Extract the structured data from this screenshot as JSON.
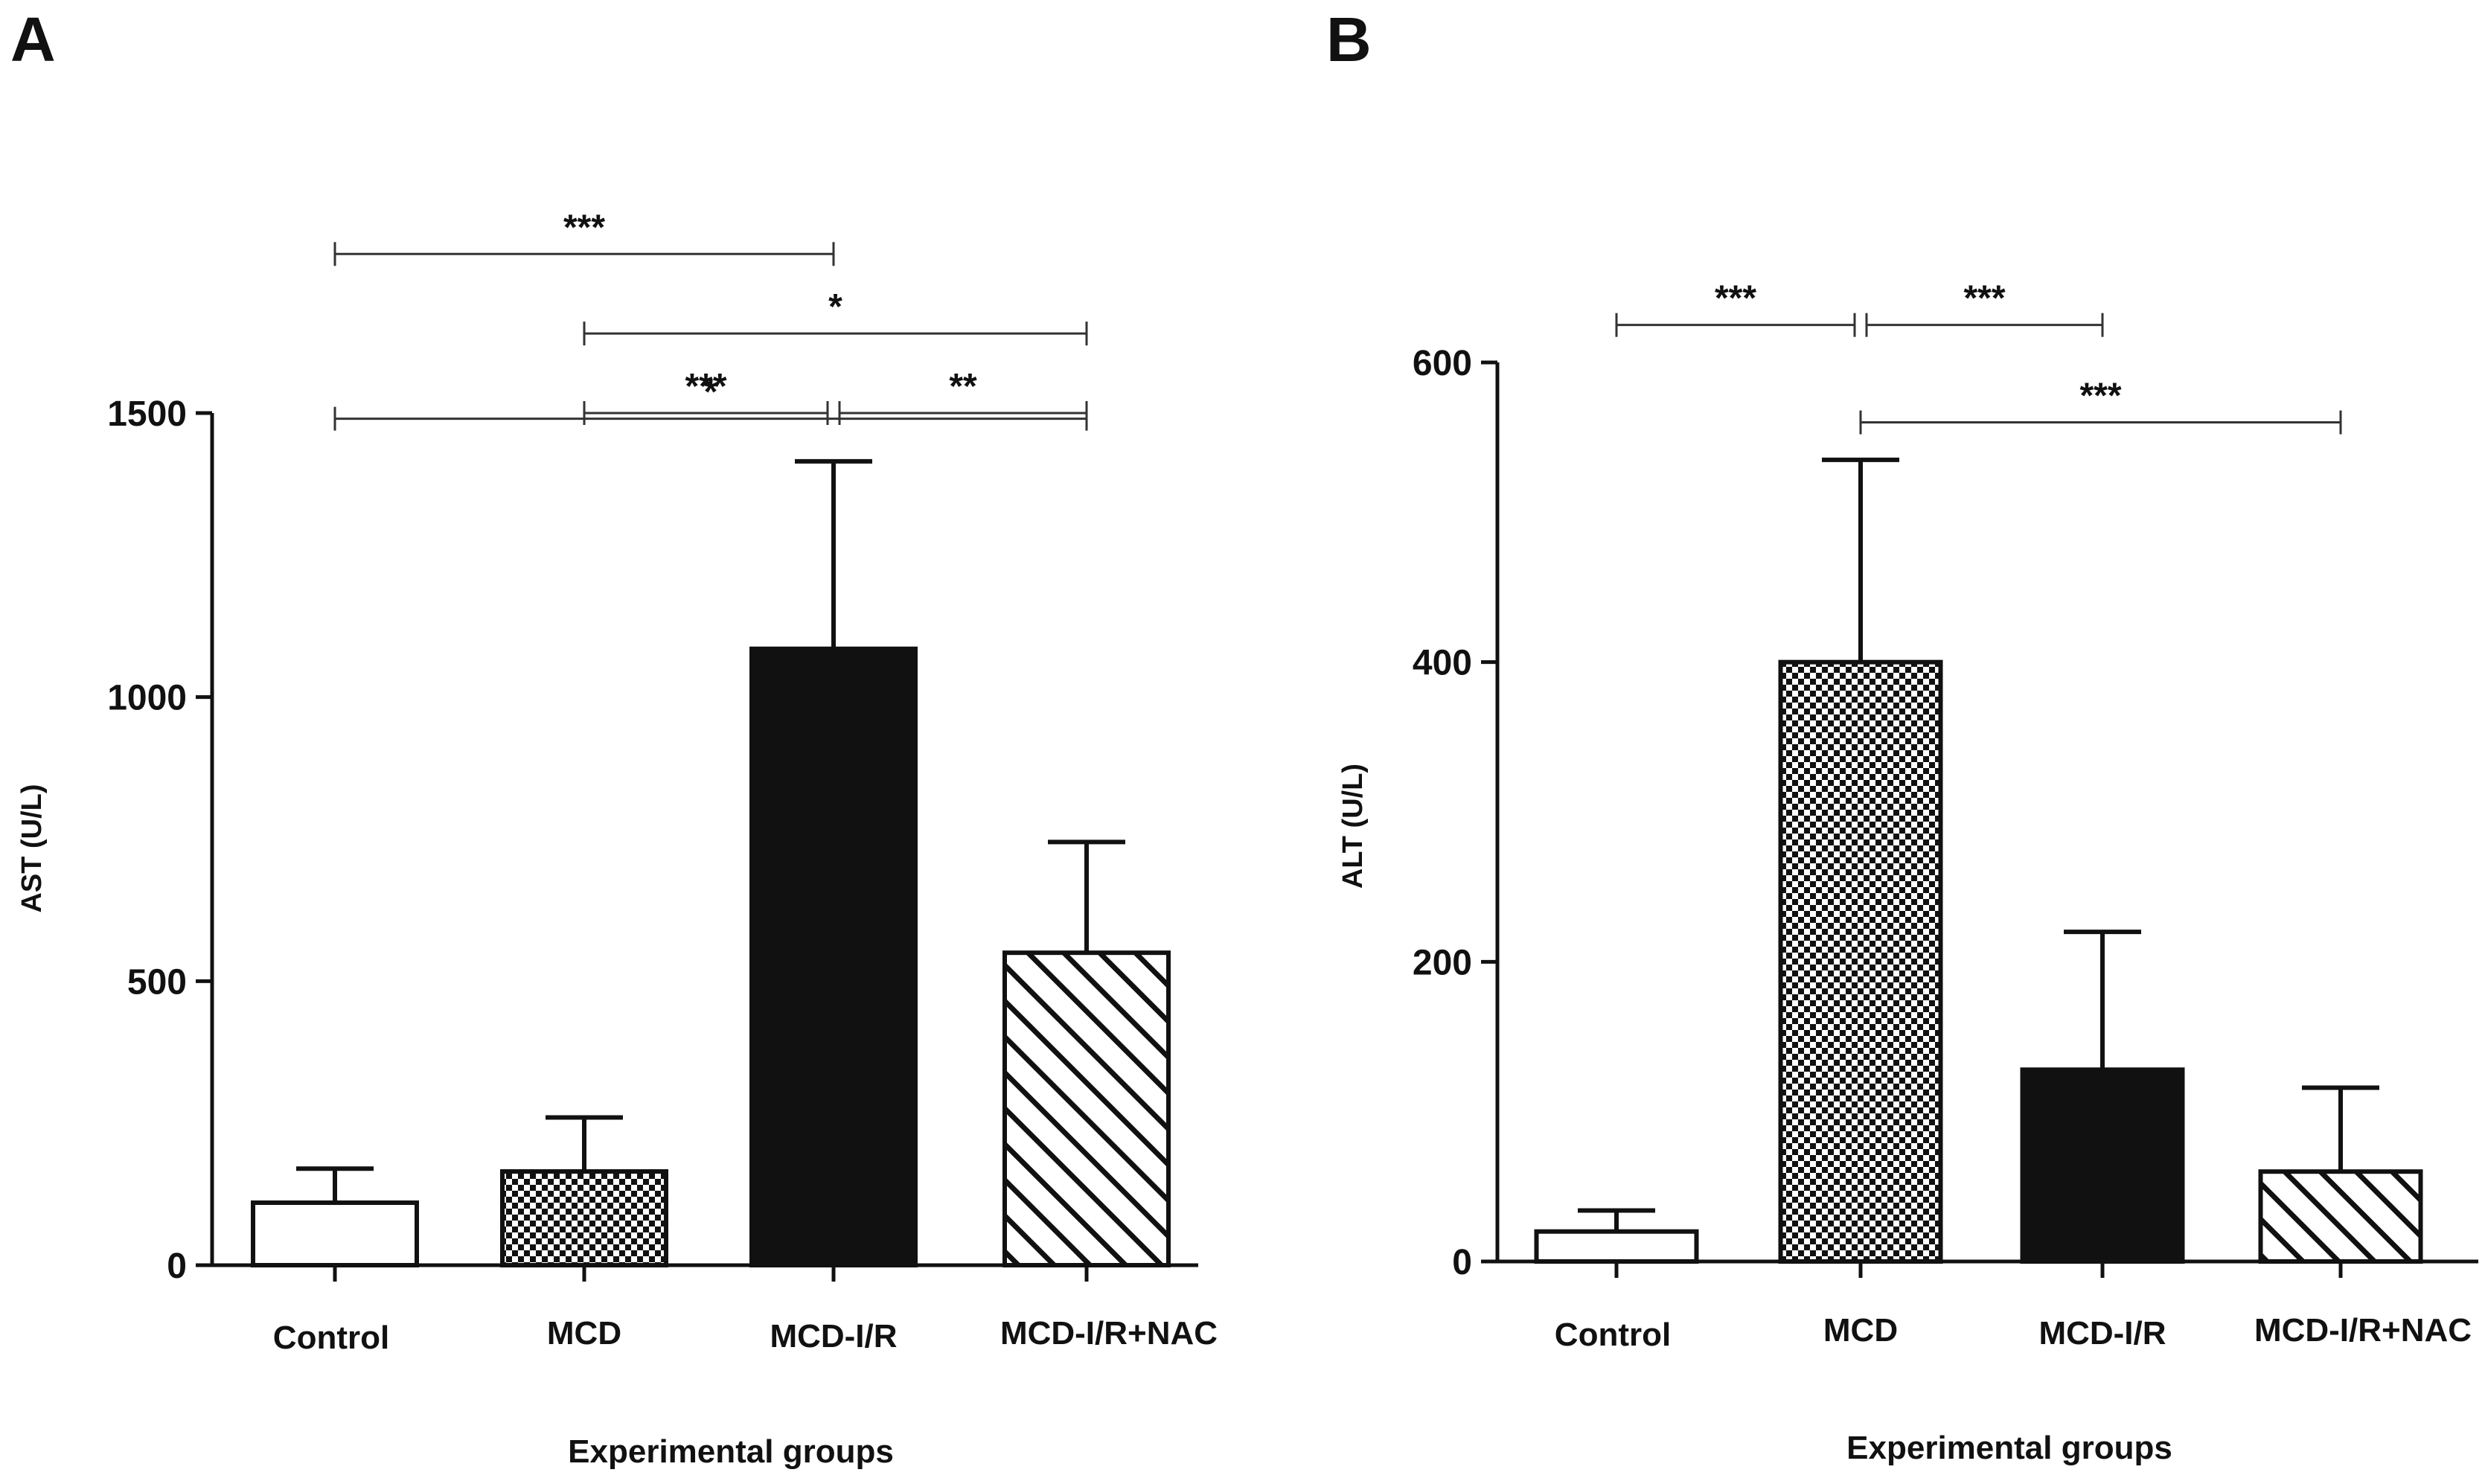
{
  "chart_data": [
    {
      "panel": "A",
      "type": "bar",
      "xlabel": "Experimental groups",
      "ylabel": "AST (U/L)",
      "ylim": [
        0,
        1500
      ],
      "yticks": [
        0,
        500,
        1000,
        1500
      ],
      "categories": [
        "Control",
        "MCD",
        "MCD-I/R",
        "MCD-I/R+NAC"
      ],
      "values": [
        110,
        165,
        1085,
        550
      ],
      "errors": [
        60,
        95,
        330,
        195
      ],
      "patterns": [
        "white",
        "checker",
        "black",
        "hatch"
      ],
      "significance": [
        {
          "from": 0,
          "to": 3,
          "label": "*",
          "level": 1490
        },
        {
          "from": 0,
          "to": 2,
          "label": "***",
          "level": 1780
        },
        {
          "from": 1,
          "to": 3,
          "label": "*",
          "level": 1640
        },
        {
          "from": 1,
          "to": 2,
          "label": "***",
          "level": 1500
        },
        {
          "from": 2,
          "to": 3,
          "label": "**",
          "level": 1500
        }
      ]
    },
    {
      "panel": "B",
      "type": "bar",
      "xlabel": "Experimental groups",
      "ylabel": "ALT (U/L)",
      "ylim": [
        0,
        600
      ],
      "yticks": [
        0,
        200,
        400,
        600
      ],
      "categories": [
        "Control",
        "MCD",
        "MCD-I/R",
        "MCD-I/R+NAC"
      ],
      "values": [
        20,
        400,
        128,
        60
      ],
      "errors": [
        14,
        135,
        92,
        56
      ],
      "patterns": [
        "white",
        "checker",
        "black",
        "hatch"
      ],
      "significance": [
        {
          "from": 0,
          "to": 1,
          "label": "***",
          "level": 625
        },
        {
          "from": 1,
          "to": 2,
          "label": "***",
          "level": 625
        },
        {
          "from": 1,
          "to": 3,
          "label": "***",
          "level": 560
        }
      ]
    }
  ]
}
